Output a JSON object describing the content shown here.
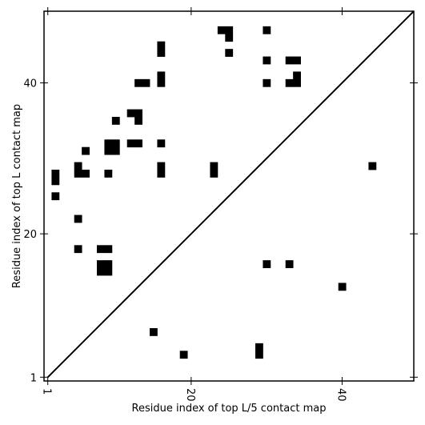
{
  "chart_data": {
    "type": "heatmap",
    "xlabel": "Residue index of top L/5 contact map",
    "ylabel": "Residue index of top L contact map",
    "xlim": [
      0.5,
      49.5
    ],
    "ylim": [
      0.5,
      49.5
    ],
    "xticks": [
      {
        "value": 1,
        "label": "1"
      },
      {
        "value": 20,
        "label": "20"
      },
      {
        "value": 40,
        "label": "40"
      }
    ],
    "yticks": [
      {
        "value": 1,
        "label": "1"
      },
      {
        "value": 20,
        "label": "20"
      },
      {
        "value": 40,
        "label": "40"
      }
    ],
    "diagonal": true,
    "grid": false,
    "cell_color": "#000000",
    "upper_contacts_top_L": [
      [
        2,
        27
      ],
      [
        2,
        28
      ],
      [
        2,
        25
      ],
      [
        5,
        29
      ],
      [
        5,
        28
      ],
      [
        6,
        28
      ],
      [
        6,
        31
      ],
      [
        5,
        22
      ],
      [
        5,
        18
      ],
      [
        8,
        18
      ],
      [
        9,
        18
      ],
      [
        8,
        15
      ],
      [
        8,
        16
      ],
      [
        9,
        15
      ],
      [
        9,
        16
      ],
      [
        9,
        31
      ],
      [
        9,
        32
      ],
      [
        10,
        31
      ],
      [
        10,
        32
      ],
      [
        9,
        28
      ],
      [
        10,
        35
      ],
      [
        12,
        36
      ],
      [
        13,
        36
      ],
      [
        13,
        35
      ],
      [
        12,
        32
      ],
      [
        13,
        32
      ],
      [
        13,
        40
      ],
      [
        14,
        40
      ],
      [
        16,
        44
      ],
      [
        16,
        45
      ],
      [
        16,
        40
      ],
      [
        16,
        41
      ],
      [
        16,
        32
      ],
      [
        16,
        28
      ],
      [
        16,
        29
      ],
      [
        23,
        28
      ],
      [
        23,
        29
      ],
      [
        24,
        47
      ],
      [
        25,
        47
      ],
      [
        25,
        46
      ],
      [
        25,
        44
      ],
      [
        30,
        47
      ],
      [
        30,
        43
      ],
      [
        30,
        40
      ],
      [
        33,
        43
      ],
      [
        34,
        43
      ],
      [
        33,
        40
      ],
      [
        34,
        40
      ],
      [
        34,
        41
      ]
    ],
    "lower_contacts_top_L5": [
      [
        15,
        7
      ],
      [
        19,
        4
      ],
      [
        29,
        4
      ],
      [
        29,
        5
      ],
      [
        30,
        16
      ],
      [
        33,
        16
      ],
      [
        40,
        13
      ],
      [
        44,
        29
      ]
    ]
  }
}
